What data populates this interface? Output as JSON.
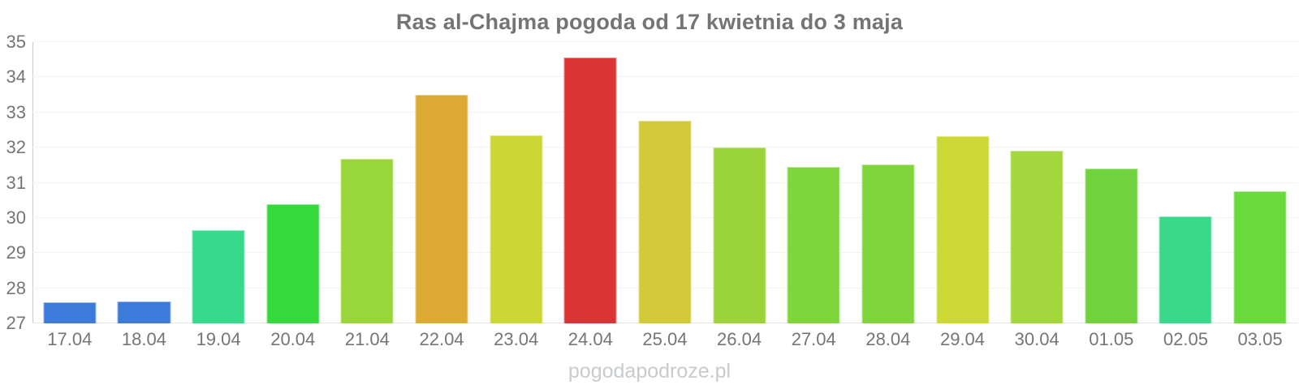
{
  "title": "Ras al-Chajma pogoda od 17 kwietnia do 3 maja",
  "watermark": "pogodapodroze.pl",
  "colors": {
    "background": "#ffffff",
    "title_text": "#747474",
    "axis_text": "#757575",
    "grid_line": "#f2f2f2",
    "y_axis_line": "#c9c9c9",
    "baseline": "#e8e8e8",
    "watermark_text": "#c7cbce"
  },
  "chart_data": {
    "type": "bar",
    "title": "Ras al-Chajma pogoda od 17 kwietnia do 3 maja",
    "xlabel": "",
    "ylabel": "",
    "ylim": [
      27,
      35
    ],
    "yticks": [
      27,
      28,
      29,
      30,
      31,
      32,
      33,
      34,
      35
    ],
    "grid": true,
    "legend": false,
    "categories": [
      "17.04",
      "18.04",
      "19.04",
      "20.04",
      "21.04",
      "22.04",
      "23.04",
      "24.04",
      "25.04",
      "26.04",
      "27.04",
      "28.04",
      "29.04",
      "30.04",
      "01.05",
      "02.05",
      "03.05"
    ],
    "values": [
      27.6,
      27.63,
      29.65,
      30.4,
      31.67,
      33.5,
      32.35,
      34.57,
      32.77,
      32.0,
      31.46,
      31.51,
      32.33,
      31.9,
      31.4,
      30.05,
      30.75
    ],
    "bar_colors": [
      "#3d7bda",
      "#3d7bda",
      "#37da8b",
      "#36d93b",
      "#99d639",
      "#dca933",
      "#cad736",
      "#db3434",
      "#d3c83a",
      "#9bd43a",
      "#7ed53c",
      "#80d53c",
      "#cbd835",
      "#a2d73d",
      "#70d23d",
      "#3ad98a",
      "#69da3c"
    ]
  }
}
